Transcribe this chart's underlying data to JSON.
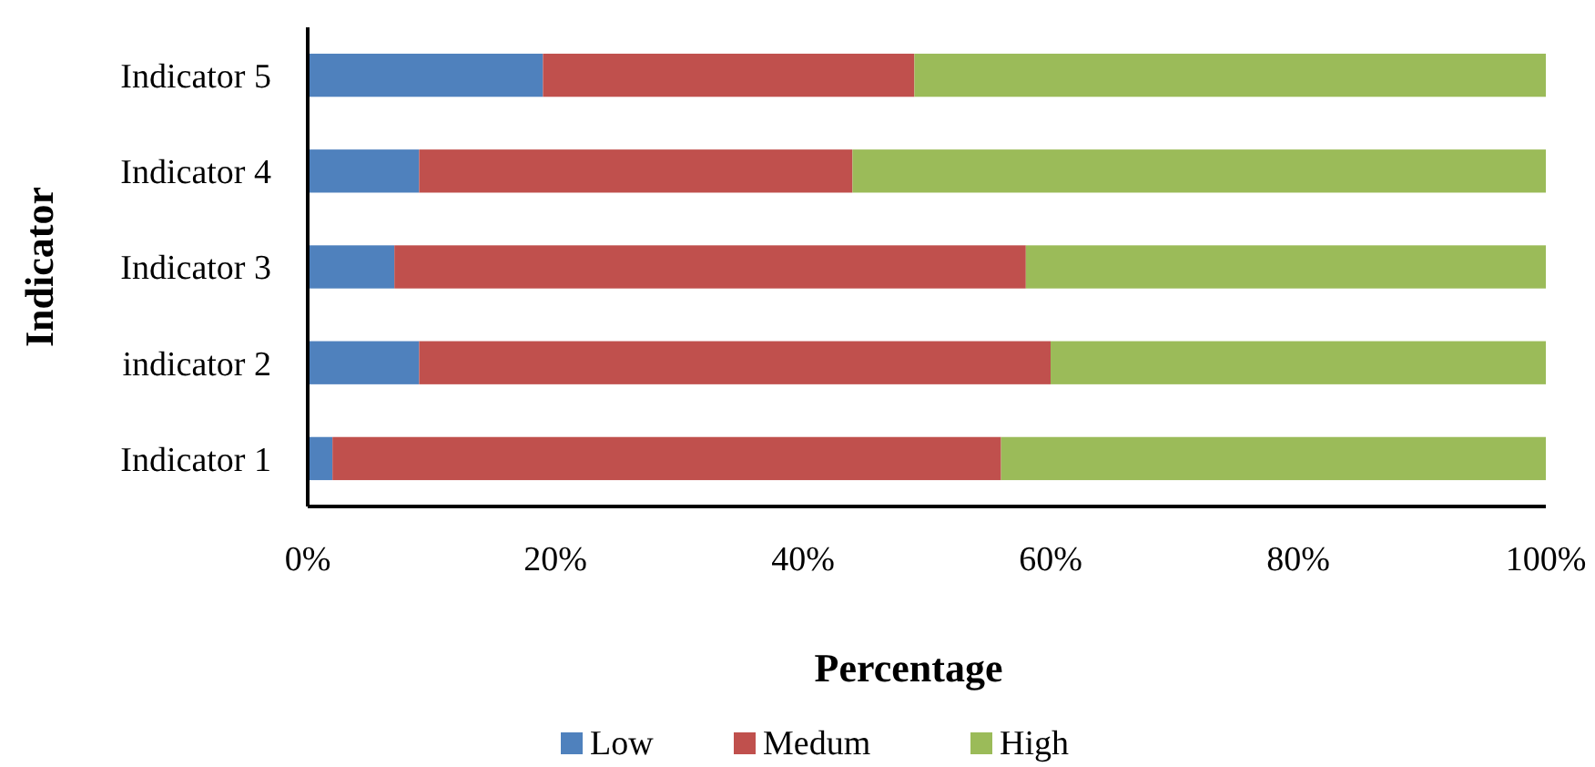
{
  "chart_data": {
    "type": "bar",
    "orientation": "horizontal",
    "stacked": true,
    "ylabel": "Indicator",
    "xlabel": "Percentage",
    "categories": [
      "Indicator 5",
      "Indicator 4",
      "Indicator 3",
      "indicator 2",
      "Indicator 1"
    ],
    "series": [
      {
        "name": "Low",
        "color": "#4f81bd",
        "values": [
          19,
          9,
          7,
          9,
          2
        ]
      },
      {
        "name": "Medum",
        "color": "#c0504d",
        "values": [
          30,
          35,
          51,
          51,
          54
        ]
      },
      {
        "name": "High",
        "color": "#9bbb59",
        "values": [
          51,
          56,
          42,
          40,
          44
        ]
      }
    ],
    "xlim": [
      0,
      100
    ],
    "xticks": [
      {
        "value": 0,
        "label": "0%"
      },
      {
        "value": 20,
        "label": "20%"
      },
      {
        "value": 40,
        "label": "40%"
      },
      {
        "value": 60,
        "label": "60%"
      },
      {
        "value": 80,
        "label": "80%"
      },
      {
        "value": 100,
        "label": "100%"
      }
    ],
    "grid": false,
    "legend": "bottom"
  }
}
